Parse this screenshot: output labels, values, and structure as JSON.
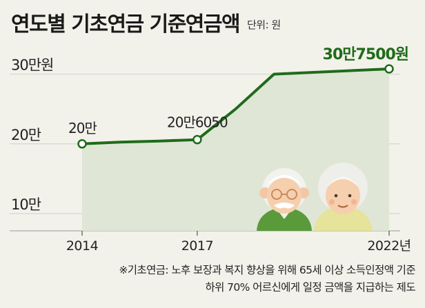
{
  "chart_data": {
    "type": "line",
    "title": "연도별 기초연금 기준연금액",
    "unit": "단위: 원",
    "ylim": [
      100000,
      307500
    ],
    "y_ticks": [
      {
        "value": 300000,
        "label": "30만원"
      },
      {
        "value": 200000,
        "label": "20만"
      },
      {
        "value": 100000,
        "label": "10만"
      }
    ],
    "x_ticks": [
      {
        "year": 2014,
        "label": "2014"
      },
      {
        "year": 2017,
        "label": "2017"
      },
      {
        "year": 2022,
        "label": "2022년"
      }
    ],
    "series": [
      {
        "points": [
          {
            "year": 2014,
            "value": 200000
          },
          {
            "year": 2015,
            "value": 202600
          },
          {
            "year": 2016,
            "value": 204010
          },
          {
            "year": 2017,
            "value": 206050
          },
          {
            "year": 2018,
            "value": 250000
          },
          {
            "year": 2019,
            "value": 300000
          },
          {
            "year": 2022,
            "value": 307500
          }
        ]
      }
    ],
    "annotations": [
      {
        "year": 2014,
        "value": 200000,
        "label": "20만"
      },
      {
        "year": 2017,
        "value": 206050,
        "label": "20만6050"
      },
      {
        "year": 2022,
        "value": 307500,
        "label": "30만7500원"
      }
    ],
    "colors": {
      "line": "#1f6b1a",
      "fill": "#dfe6d6",
      "background": "#f2f1ea",
      "grid": "#cfcfcf"
    }
  },
  "footnote": {
    "line1": "※기초연금: 노후 보장과 복지 향상을 위해 65세 이상 소득인정액 기준",
    "line2": "하위 70% 어르신에게 일정 금액을 지급하는 제도"
  }
}
